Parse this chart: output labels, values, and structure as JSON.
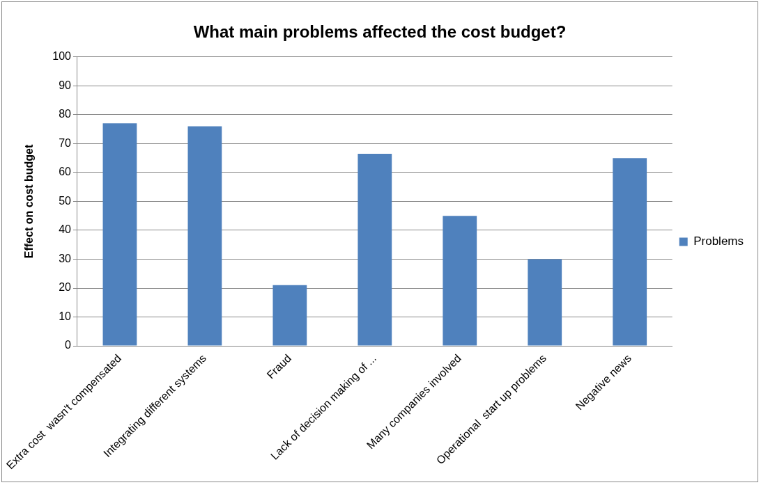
{
  "chart_data": {
    "type": "bar",
    "title": "What main problems affected the cost budget?",
    "ylabel": "Effect on cost budget",
    "categories": [
      "Extra cost  wasn't compensated",
      "Integrating different systems",
      "Fraud",
      "Lack of decision making of ...",
      "Many companies involved",
      "Operational  start up problems",
      "Negative news"
    ],
    "series": [
      {
        "name": "Problems",
        "color": "#4f81bd",
        "values": [
          77,
          76,
          21,
          66.5,
          45,
          30,
          65
        ]
      }
    ],
    "ylim": [
      0,
      100
    ],
    "yticks": [
      0,
      10,
      20,
      30,
      40,
      50,
      60,
      70,
      80,
      90,
      100
    ],
    "grid": "y",
    "legend": "right"
  }
}
